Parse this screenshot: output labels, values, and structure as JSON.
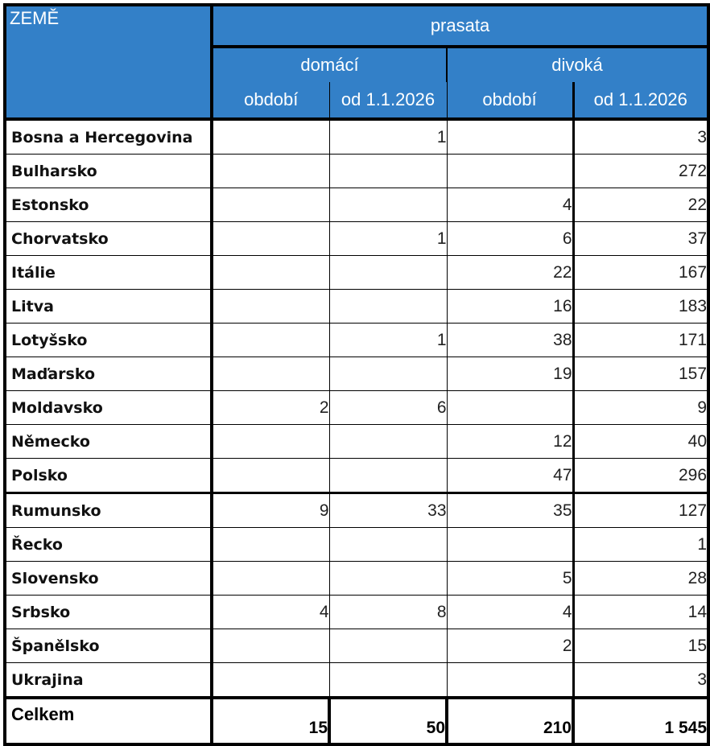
{
  "header": {
    "country_col": "ZEMĚ",
    "group": "prasata",
    "subgroups": [
      "domácí",
      "divoká"
    ],
    "columns": [
      "období",
      "od 1.1.2026",
      "období",
      "od 1.1.2026"
    ]
  },
  "rows": [
    {
      "country": "Bosna a Hercegovina",
      "values": [
        "",
        "1",
        "",
        "3"
      ]
    },
    {
      "country": "Bulharsko",
      "values": [
        "",
        "",
        "",
        "272"
      ]
    },
    {
      "country": "Estonsko",
      "values": [
        "",
        "",
        "4",
        "22"
      ]
    },
    {
      "country": "Chorvatsko",
      "values": [
        "",
        "1",
        "6",
        "37"
      ]
    },
    {
      "country": "Itálie",
      "values": [
        "",
        "",
        "22",
        "167"
      ]
    },
    {
      "country": "Litva",
      "values": [
        "",
        "",
        "16",
        "183"
      ]
    },
    {
      "country": "Lotyšsko",
      "values": [
        "",
        "1",
        "38",
        "171"
      ]
    },
    {
      "country": "Maďarsko",
      "values": [
        "",
        "",
        "19",
        "157"
      ]
    },
    {
      "country": "Moldavsko",
      "values": [
        "2",
        "6",
        "",
        "9"
      ]
    },
    {
      "country": "Německo",
      "values": [
        "",
        "",
        "12",
        "40"
      ]
    },
    {
      "country": "Polsko",
      "values": [
        "",
        "",
        "47",
        "296"
      ]
    },
    {
      "country": "Rumunsko",
      "values": [
        "9",
        "33",
        "35",
        "127"
      ]
    },
    {
      "country": "Řecko",
      "values": [
        "",
        "",
        "",
        "1"
      ]
    },
    {
      "country": "Slovensko",
      "values": [
        "",
        "",
        "5",
        "28"
      ]
    },
    {
      "country": "Srbsko",
      "values": [
        "4",
        "8",
        "4",
        "14"
      ]
    },
    {
      "country": "Španělsko",
      "values": [
        "",
        "",
        "2",
        "15"
      ]
    },
    {
      "country": "Ukrajina",
      "values": [
        "",
        "",
        "",
        "3"
      ]
    }
  ],
  "total": {
    "label": "Celkem",
    "values": [
      "15",
      "50",
      "210",
      "1 545"
    ]
  },
  "colors": {
    "header_bg": "#3380c8",
    "header_text": "#ffffff",
    "border": "#000000"
  }
}
